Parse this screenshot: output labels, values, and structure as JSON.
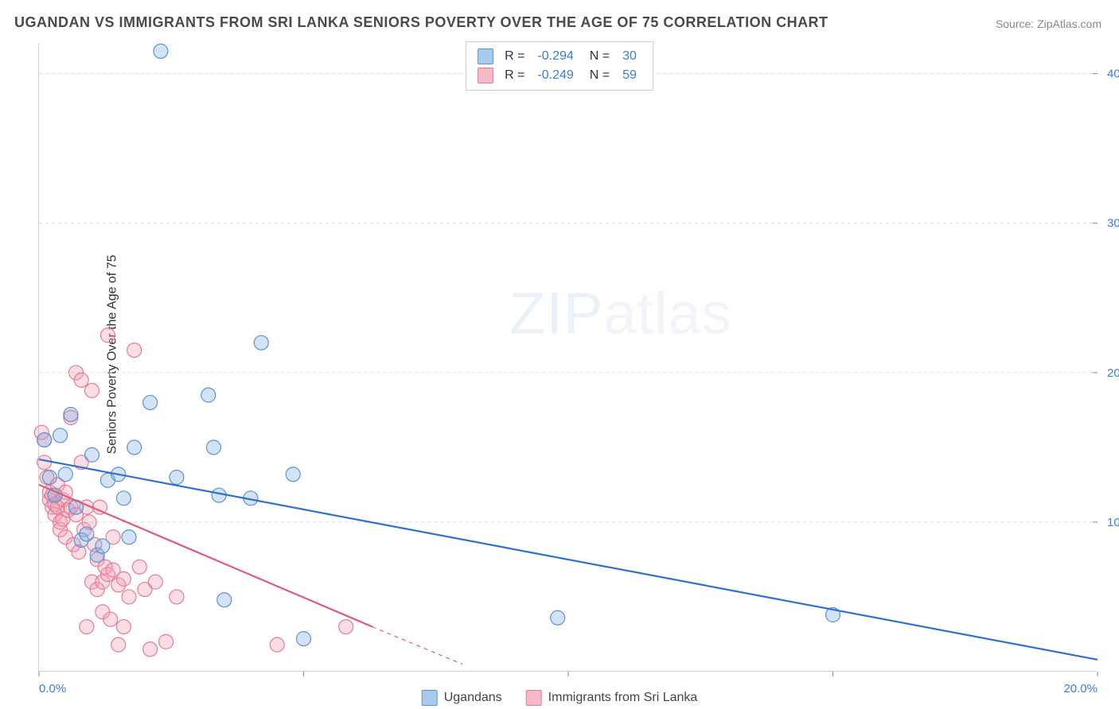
{
  "title": "UGANDAN VS IMMIGRANTS FROM SRI LANKA SENIORS POVERTY OVER THE AGE OF 75 CORRELATION CHART",
  "source_label": "Source: ",
  "source_name": "ZipAtlas.com",
  "ylabel": "Seniors Poverty Over the Age of 75",
  "watermark_bold": "ZIP",
  "watermark_thin": "atlas",
  "stats": [
    {
      "r_label": "R =",
      "r_value": "-0.294",
      "n_label": "N =",
      "n_value": "30",
      "swatch_fill": "#a9cbeb",
      "swatch_border": "#5b93d0"
    },
    {
      "r_label": "R =",
      "r_value": "-0.249",
      "n_label": "N =",
      "n_value": "59",
      "swatch_fill": "#f5b9c7",
      "swatch_border": "#e77a93"
    }
  ],
  "legend": [
    {
      "label": "Ugandans",
      "swatch_fill": "#a9cbeb",
      "swatch_border": "#5b93d0"
    },
    {
      "label": "Immigrants from Sri Lanka",
      "swatch_fill": "#f5b9c7",
      "swatch_border": "#e77a93"
    }
  ],
  "chart": {
    "type": "scatter",
    "background_color": "#ffffff",
    "grid_color": "#d9d9d9",
    "axis_color": "#d0d0d0",
    "xlim": [
      0,
      20
    ],
    "ylim": [
      0,
      42
    ],
    "xticks": [
      0,
      5,
      10,
      15,
      20
    ],
    "xticklabels_labeled": {
      "0": "0.0%",
      "20": "20.0%"
    },
    "xtick_color": "#3b7dd8",
    "yticks": [
      10,
      20,
      30,
      40
    ],
    "yticklabels": [
      "10.0%",
      "20.0%",
      "30.0%",
      "40.0%"
    ],
    "ytick_color": "#3b7dd8",
    "marker_radius": 9,
    "marker_stroke_width": 1.2,
    "series": [
      {
        "name": "Ugandans",
        "fill": "rgba(130,175,225,0.35)",
        "stroke": "#5b93d0",
        "line_color": "#2f6fd0",
        "line_width": 2.2,
        "trend": {
          "x1": 0,
          "y1": 14.2,
          "x2": 20,
          "y2": 0.8
        },
        "points": [
          [
            0.1,
            15.5
          ],
          [
            0.2,
            13.0
          ],
          [
            0.3,
            11.8
          ],
          [
            0.4,
            15.8
          ],
          [
            0.5,
            13.2
          ],
          [
            0.6,
            17.2
          ],
          [
            0.7,
            11.0
          ],
          [
            0.8,
            8.8
          ],
          [
            0.9,
            9.2
          ],
          [
            1.0,
            14.5
          ],
          [
            1.1,
            7.8
          ],
          [
            1.2,
            8.4
          ],
          [
            1.3,
            12.8
          ],
          [
            1.5,
            13.2
          ],
          [
            1.6,
            11.6
          ],
          [
            1.7,
            9.0
          ],
          [
            1.8,
            15.0
          ],
          [
            2.1,
            18.0
          ],
          [
            2.3,
            41.5
          ],
          [
            2.6,
            13.0
          ],
          [
            3.2,
            18.5
          ],
          [
            3.3,
            15.0
          ],
          [
            3.4,
            11.8
          ],
          [
            3.5,
            4.8
          ],
          [
            4.0,
            11.6
          ],
          [
            4.2,
            22.0
          ],
          [
            4.8,
            13.2
          ],
          [
            5.0,
            2.2
          ],
          [
            9.8,
            3.6
          ],
          [
            15.0,
            3.8
          ]
        ]
      },
      {
        "name": "Immigrants from Sri Lanka",
        "fill": "rgba(240,160,180,0.35)",
        "stroke": "#e77a93",
        "line_color": "#e05a7a",
        "line_width": 2.2,
        "trend": {
          "x1": 0,
          "y1": 12.5,
          "x2": 6.3,
          "y2": 3.0
        },
        "trend_dash": {
          "x1": 6.3,
          "y1": 3.0,
          "x2": 8.0,
          "y2": 0.5
        },
        "points": [
          [
            0.05,
            16.0
          ],
          [
            0.1,
            15.5
          ],
          [
            0.1,
            14.0
          ],
          [
            0.15,
            13.0
          ],
          [
            0.2,
            12.0
          ],
          [
            0.2,
            11.5
          ],
          [
            0.25,
            11.8
          ],
          [
            0.25,
            11.0
          ],
          [
            0.3,
            11.2
          ],
          [
            0.3,
            10.5
          ],
          [
            0.35,
            12.5
          ],
          [
            0.35,
            11.0
          ],
          [
            0.4,
            10.0
          ],
          [
            0.4,
            9.5
          ],
          [
            0.45,
            11.5
          ],
          [
            0.45,
            10.2
          ],
          [
            0.5,
            12.0
          ],
          [
            0.5,
            9.0
          ],
          [
            0.55,
            10.8
          ],
          [
            0.6,
            17.0
          ],
          [
            0.6,
            11.0
          ],
          [
            0.65,
            8.5
          ],
          [
            0.7,
            10.5
          ],
          [
            0.7,
            20.0
          ],
          [
            0.75,
            8.0
          ],
          [
            0.8,
            14.0
          ],
          [
            0.8,
            19.5
          ],
          [
            0.85,
            9.5
          ],
          [
            0.9,
            11.0
          ],
          [
            0.9,
            3.0
          ],
          [
            0.95,
            10.0
          ],
          [
            1.0,
            6.0
          ],
          [
            1.0,
            18.8
          ],
          [
            1.05,
            8.5
          ],
          [
            1.1,
            5.5
          ],
          [
            1.1,
            7.5
          ],
          [
            1.15,
            11.0
          ],
          [
            1.2,
            6.0
          ],
          [
            1.2,
            4.0
          ],
          [
            1.25,
            7.0
          ],
          [
            1.3,
            6.5
          ],
          [
            1.3,
            22.5
          ],
          [
            1.35,
            3.5
          ],
          [
            1.4,
            6.8
          ],
          [
            1.4,
            9.0
          ],
          [
            1.5,
            5.8
          ],
          [
            1.5,
            1.8
          ],
          [
            1.6,
            6.2
          ],
          [
            1.6,
            3.0
          ],
          [
            1.7,
            5.0
          ],
          [
            1.8,
            21.5
          ],
          [
            1.9,
            7.0
          ],
          [
            2.0,
            5.5
          ],
          [
            2.1,
            1.5
          ],
          [
            2.2,
            6.0
          ],
          [
            2.4,
            2.0
          ],
          [
            2.6,
            5.0
          ],
          [
            4.5,
            1.8
          ],
          [
            5.8,
            3.0
          ]
        ]
      }
    ]
  }
}
